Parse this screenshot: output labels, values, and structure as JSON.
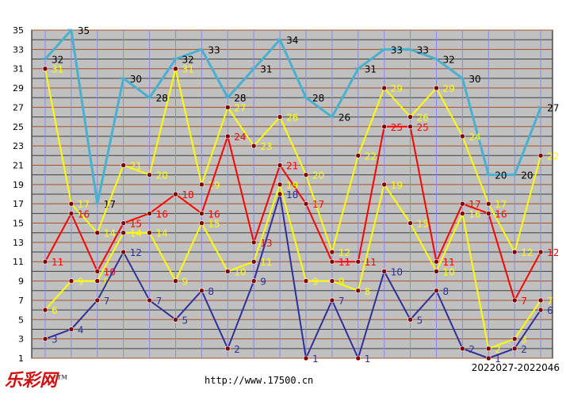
{
  "chart_data": {
    "type": "line",
    "ylim": [
      1,
      35
    ],
    "yticks": [
      1,
      3,
      5,
      7,
      9,
      11,
      13,
      15,
      17,
      19,
      21,
      23,
      25,
      27,
      29,
      31,
      33,
      35
    ],
    "x": [
      1,
      2,
      3,
      4,
      5,
      6,
      7,
      8,
      9,
      10,
      11,
      12,
      13,
      14,
      15,
      16,
      17,
      18,
      19,
      20
    ],
    "grid": true,
    "background": "#c0c0c0",
    "series": [
      {
        "values": [
          32,
          35,
          17,
          30,
          28,
          32,
          33,
          28,
          31,
          34,
          28,
          26,
          31,
          33,
          33,
          32,
          30,
          20,
          20,
          27
        ],
        "color": "#4ab0d0",
        "label_color": "#000000"
      },
      {
        "values": [
          31,
          17,
          14,
          21,
          20,
          31,
          19,
          27,
          23,
          26,
          20,
          12,
          22,
          29,
          26,
          29,
          24,
          17,
          12,
          22
        ],
        "color": "#ffff00",
        "label_color": "#ffff00"
      },
      {
        "values": [
          11,
          16,
          10,
          15,
          16,
          18,
          16,
          24,
          13,
          21,
          17,
          11,
          11,
          25,
          25,
          11,
          17,
          16,
          7,
          12
        ],
        "color": "#ff0000",
        "label_color": "#ff0000"
      },
      {
        "values": [
          6,
          9,
          9,
          14,
          14,
          9,
          15,
          10,
          11,
          19,
          9,
          9,
          8,
          19,
          15,
          10,
          16,
          2,
          3,
          7
        ],
        "color": "#ffff00",
        "label_color": "#ffff00"
      },
      {
        "values": [
          3,
          4,
          7,
          12,
          7,
          5,
          8,
          2,
          9,
          18,
          1,
          7,
          1,
          10,
          5,
          8,
          2,
          1,
          2,
          6
        ],
        "color": "#30309a",
        "label_color": "#30309a"
      }
    ]
  },
  "footer": {
    "logo": "乐彩网",
    "trademark": "TM",
    "url": "http://www.17500.cn",
    "range": "2022027-2022046"
  }
}
